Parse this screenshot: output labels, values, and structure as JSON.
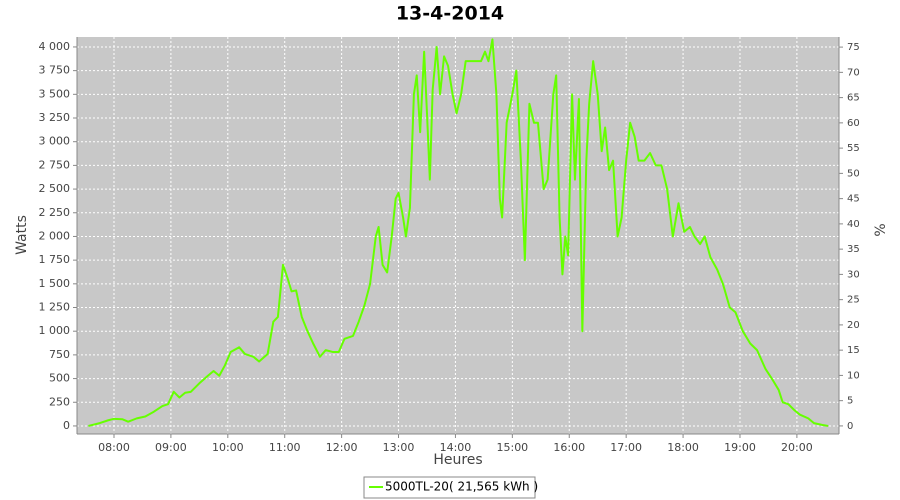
{
  "chart_data": {
    "type": "line",
    "title": "13-4-2014",
    "x_label": "Heures",
    "y_label": "Watts",
    "y2_label": "%",
    "xlim": [
      7.35,
      20.74
    ],
    "xticks": [
      {
        "value": 8,
        "label": "08:00"
      },
      {
        "value": 9,
        "label": "09:00"
      },
      {
        "value": 10,
        "label": "10:00"
      },
      {
        "value": 11,
        "label": "11:00"
      },
      {
        "value": 12,
        "label": "12:00"
      },
      {
        "value": 13,
        "label": "13:00"
      },
      {
        "value": 14,
        "label": "14:00"
      },
      {
        "value": 15,
        "label": "15:00"
      },
      {
        "value": 16,
        "label": "16:00"
      },
      {
        "value": 17,
        "label": "17:00"
      },
      {
        "value": 18,
        "label": "18:00"
      },
      {
        "value": 19,
        "label": "19:00"
      },
      {
        "value": 20,
        "label": "20:00"
      }
    ],
    "ylim": [
      -85,
      4105
    ],
    "yticks": [
      0,
      250,
      500,
      750,
      {
        "value": 1000,
        "label": "1 000"
      },
      {
        "value": 1250,
        "label": "1 250"
      },
      {
        "value": 1500,
        "label": "1 500"
      },
      {
        "value": 1750,
        "label": "1 750"
      },
      {
        "value": 2000,
        "label": "2 000"
      },
      {
        "value": 2250,
        "label": "2 250"
      },
      {
        "value": 2500,
        "label": "2 500"
      },
      {
        "value": 2750,
        "label": "2 750"
      },
      {
        "value": 3000,
        "label": "3 000"
      },
      {
        "value": 3250,
        "label": "3 250"
      },
      {
        "value": 3500,
        "label": "3 500"
      },
      {
        "value": 3750,
        "label": "3 750"
      },
      {
        "value": 4000,
        "label": "4 000"
      }
    ],
    "y2lim": [
      -1.6,
      77
    ],
    "y2ticks": [
      0,
      5,
      10,
      15,
      20,
      25,
      30,
      35,
      40,
      45,
      50,
      55,
      60,
      65,
      70,
      75
    ],
    "grid": true,
    "legend": "bottom",
    "x": [
      7.55,
      7.75,
      7.9,
      8.0,
      8.15,
      8.25,
      8.4,
      8.55,
      8.7,
      8.85,
      8.95,
      9.05,
      9.15,
      9.25,
      9.35,
      9.5,
      9.65,
      9.75,
      9.85,
      9.95,
      10.05,
      10.2,
      10.3,
      10.45,
      10.55,
      10.7,
      10.8,
      10.88,
      10.97,
      11.05,
      11.12,
      11.2,
      11.3,
      11.4,
      11.5,
      11.62,
      11.72,
      11.85,
      11.95,
      12.05,
      12.2,
      12.3,
      12.4,
      12.5,
      12.6,
      12.65,
      12.72,
      12.8,
      12.88,
      12.95,
      13.0,
      13.08,
      13.13,
      13.2,
      13.27,
      13.32,
      13.38,
      13.45,
      13.5,
      13.55,
      13.6,
      13.67,
      13.73,
      13.8,
      13.87,
      13.95,
      14.02,
      14.1,
      14.18,
      14.35,
      14.45,
      14.52,
      14.58,
      14.65,
      14.72,
      14.78,
      14.82,
      14.9,
      15.0,
      15.07,
      15.15,
      15.22,
      15.3,
      15.38,
      15.45,
      15.55,
      15.62,
      15.72,
      15.77,
      15.83,
      15.88,
      15.93,
      15.98,
      16.05,
      16.1,
      16.17,
      16.23,
      16.3,
      16.35,
      16.42,
      16.5,
      16.57,
      16.63,
      16.7,
      16.77,
      16.85,
      16.92,
      17.0,
      17.07,
      17.15,
      17.22,
      17.32,
      17.42,
      17.52,
      17.62,
      17.72,
      17.82,
      17.92,
      18.02,
      18.12,
      18.2,
      18.3,
      18.38,
      18.48,
      18.6,
      18.7,
      18.82,
      18.92,
      19.05,
      19.18,
      19.3,
      19.45,
      19.58,
      19.68,
      19.75,
      19.85,
      19.95,
      20.05,
      20.2,
      20.3,
      20.45,
      20.55
    ],
    "series": [
      {
        "name": "5000TL-20( 21,565 kWh )",
        "color": "#66ff00",
        "values": [
          0,
          30,
          60,
          75,
          70,
          45,
          80,
          100,
          150,
          210,
          230,
          360,
          300,
          350,
          360,
          450,
          530,
          580,
          530,
          640,
          780,
          830,
          760,
          730,
          680,
          760,
          1100,
          1150,
          1700,
          1560,
          1420,
          1430,
          1150,
          1000,
          870,
          730,
          800,
          780,
          780,
          920,
          950,
          1100,
          1270,
          1500,
          2000,
          2100,
          1700,
          1620,
          2000,
          2400,
          2460,
          2200,
          2000,
          2300,
          3500,
          3700,
          3100,
          3950,
          3300,
          2600,
          3550,
          4000,
          3500,
          3900,
          3800,
          3500,
          3300,
          3500,
          3850,
          3850,
          3850,
          3950,
          3850,
          4080,
          3500,
          2400,
          2200,
          3200,
          3500,
          3750,
          2800,
          1750,
          3400,
          3200,
          3200,
          2500,
          2600,
          3500,
          3700,
          2200,
          1600,
          2000,
          1800,
          3500,
          2600,
          3450,
          1000,
          2800,
          3400,
          3850,
          3500,
          2900,
          3150,
          2700,
          2800,
          2000,
          2200,
          2800,
          3200,
          3050,
          2800,
          2800,
          2880,
          2750,
          2750,
          2500,
          2000,
          2350,
          2050,
          2100,
          2000,
          1920,
          2000,
          1780,
          1650,
          1500,
          1250,
          1200,
          1000,
          870,
          800,
          600,
          480,
          380,
          250,
          230,
          170,
          120,
          80,
          30,
          10,
          0
        ]
      }
    ]
  }
}
